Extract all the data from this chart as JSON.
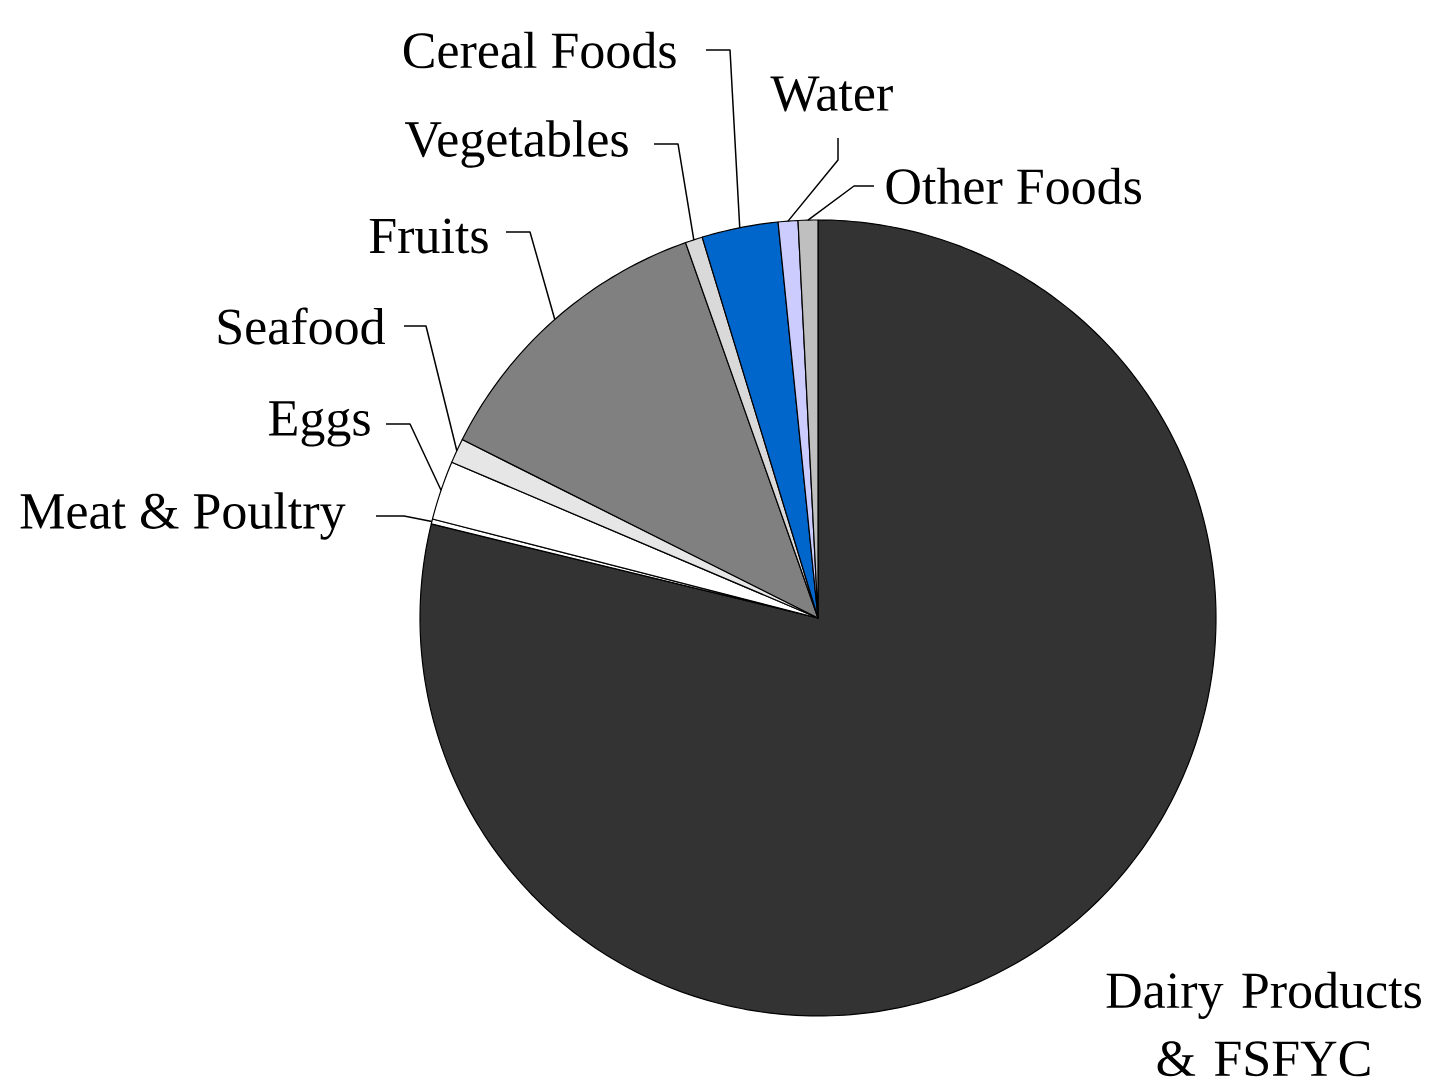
{
  "chart_data": {
    "type": "pie",
    "categories": [
      "Dairy Products & FSFYC",
      "Meat & Poultry",
      "Eggs",
      "Seafood",
      "Fruits",
      "Vegetables",
      "Cereal Foods",
      "Water",
      "Other Foods"
    ],
    "values": [
      78.8,
      0.2,
      2.4,
      1.0,
      12.2,
      0.7,
      3.1,
      0.8,
      0.8
    ],
    "colors": [
      "#333333",
      "#ffffff",
      "#ffffff",
      "#e6e6e6",
      "#808080",
      "#d9d9d9",
      "#0066cc",
      "#ccccff",
      "#bfbfbf"
    ]
  }
}
